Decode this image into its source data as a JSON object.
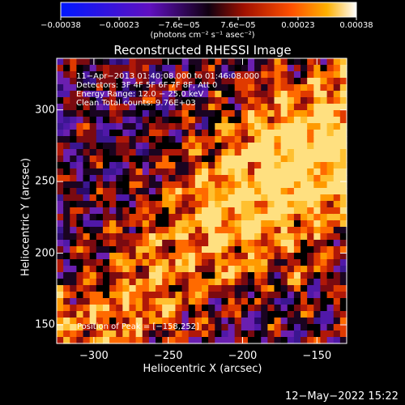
{
  "chart_data": {
    "type": "heatmap",
    "title": "Reconstructed RHESSI Image",
    "xlabel": "Heliocentric X (arcsec)",
    "ylabel": "Heliocentric Y (arcsec)",
    "xlim": [
      -325,
      -130
    ],
    "ylim": [
      137,
      336
    ],
    "x_ticks": [
      {
        "value": -300,
        "label": "−300"
      },
      {
        "value": -250,
        "label": "−250"
      },
      {
        "value": -200,
        "label": "−200"
      },
      {
        "value": -150,
        "label": "−150"
      }
    ],
    "y_ticks": [
      {
        "value": 150,
        "label": "150"
      },
      {
        "value": 200,
        "label": "200"
      },
      {
        "value": 250,
        "label": "250"
      },
      {
        "value": 300,
        "label": "300"
      }
    ],
    "colorbar": {
      "min": -0.00038,
      "max": 0.00038,
      "unit_label": "(photons cm⁻² s⁻¹ asec⁻²)",
      "ticks": [
        {
          "value": -0.00038,
          "label": "−0.00038"
        },
        {
          "value": -0.00023,
          "label": "−0.00023"
        },
        {
          "value": -7.6e-05,
          "label": "−7.6e−05"
        },
        {
          "value": 7.6e-05,
          "label": "7.6e−05"
        },
        {
          "value": 0.00023,
          "label": "0.00023"
        },
        {
          "value": 0.00038,
          "label": "0.00038"
        }
      ]
    },
    "annotations": [
      "11−Apr−2013 01:40:08.000 to 01:46:08.000",
      "Detectors: 3F 4F 5F 6F 7F 8F, Att 0",
      "Energy Range: 12.0 − 25.0 keV",
      "Clean     Total counts: 9.76E+03"
    ],
    "peak_label": "Position of Peak = [−158,252]",
    "peak_position": [
      -158,
      252
    ],
    "grid": false
  },
  "footer": {
    "timestamp": "12−May−2022 15:22"
  }
}
